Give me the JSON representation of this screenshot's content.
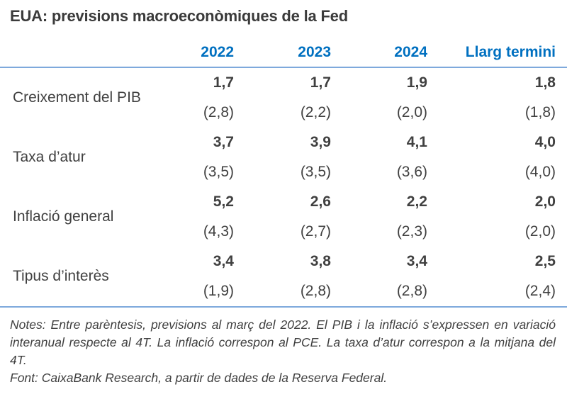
{
  "title": "EUA: previsions macroeconòmiques de la Fed",
  "table": {
    "columns": [
      "2022",
      "2023",
      "2024",
      "Llarg termini"
    ],
    "rows": [
      {
        "label": "Creixement del PIB",
        "values": [
          "1,7",
          "1,7",
          "1,9",
          "1,8"
        ],
        "previous": [
          "(2,8)",
          "(2,2)",
          "(2,0)",
          "(1,8)"
        ]
      },
      {
        "label": "Taxa d’atur",
        "values": [
          "3,7",
          "3,9",
          "4,1",
          "4,0"
        ],
        "previous": [
          "(3,5)",
          "(3,5)",
          "(3,6)",
          "(4,0)"
        ]
      },
      {
        "label": "Inflació general",
        "values": [
          "5,2",
          "2,6",
          "2,2",
          "2,0"
        ],
        "previous": [
          "(4,3)",
          "(2,7)",
          "(2,3)",
          "(2,0)"
        ]
      },
      {
        "label": "Tipus d’interès",
        "values": [
          "3,4",
          "3,8",
          "3,4",
          "2,5"
        ],
        "previous": [
          "(1,9)",
          "(2,8)",
          "(2,8)",
          "(2,4)"
        ]
      }
    ]
  },
  "notes": {
    "notes_text": "Notes: Entre parèntesis, previsions al març del 2022. El PIB i la inflació s’expressen en variació interanual respecte al 4T. La inflació correspon al PCE. La taxa d’atur correspon a la mitjana del 4T.",
    "source_text": "Font: CaixaBank Research, a partir de dades de la Reserva Federal."
  },
  "colors": {
    "accent_blue": "#0070C0",
    "rule_blue": "#7EA9DC",
    "text": "#404040"
  },
  "chart_data": {
    "type": "table",
    "title": "EUA: previsions macroeconòmiques de la Fed",
    "categories": [
      "2022",
      "2023",
      "2024",
      "Llarg termini"
    ],
    "series": [
      {
        "name": "Creixement del PIB",
        "values": [
          1.7,
          1.7,
          1.9,
          1.8
        ],
        "previous_march_2022": [
          2.8,
          2.2,
          2.0,
          1.8
        ]
      },
      {
        "name": "Taxa d’atur",
        "values": [
          3.7,
          3.9,
          4.1,
          4.0
        ],
        "previous_march_2022": [
          3.5,
          3.5,
          3.6,
          4.0
        ]
      },
      {
        "name": "Inflació general",
        "values": [
          5.2,
          2.6,
          2.2,
          2.0
        ],
        "previous_march_2022": [
          4.3,
          2.7,
          2.3,
          2.0
        ]
      },
      {
        "name": "Tipus d’interès",
        "values": [
          3.4,
          3.8,
          3.4,
          2.5
        ],
        "previous_march_2022": [
          1.9,
          2.8,
          2.8,
          2.4
        ]
      }
    ],
    "notes": "Entre parèntesis, previsions al març del 2022. El PIB i la inflació s’expressen en variació interanual respecte al 4T. La inflació correspon al PCE. La taxa d’atur correspon a la mitjana del 4T.",
    "source": "CaixaBank Research, a partir de dades de la Reserva Federal"
  }
}
